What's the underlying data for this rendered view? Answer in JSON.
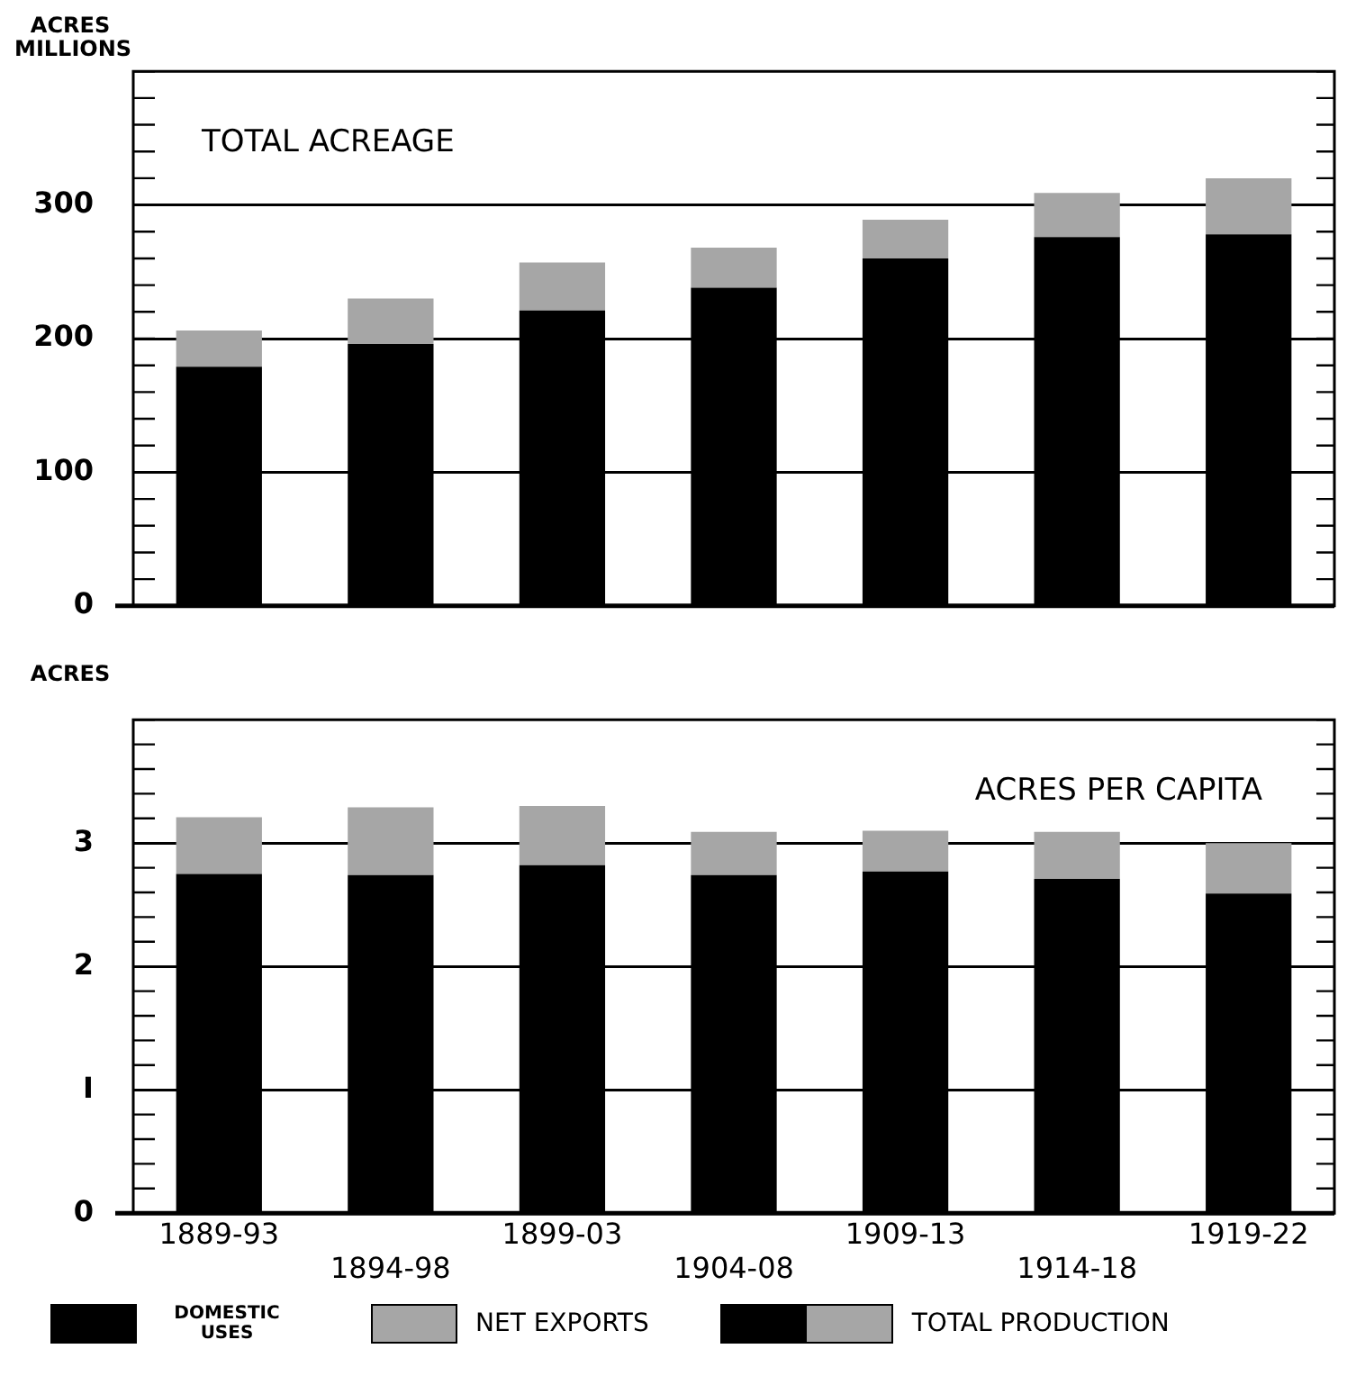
{
  "chart_data": [
    {
      "type": "bar",
      "title": "TOTAL ACREAGE",
      "ylabel": "ACRES MILLIONS",
      "categories": [
        "1889-93",
        "1894-98",
        "1899-03",
        "1904-08",
        "1909-13",
        "1914-18",
        "1919-22"
      ],
      "stacked": true,
      "series": [
        {
          "color": "#000000",
          "values": [
            179,
            196,
            221,
            238,
            260,
            276,
            278
          ]
        },
        {
          "color": "#a6a6a6",
          "values": [
            27,
            34,
            36,
            30,
            29,
            33,
            42
          ]
        }
      ],
      "ylim": [
        0,
        400
      ],
      "yticks": [
        0,
        {
          "value": 20,
          "label": null
        },
        {
          "value": 40,
          "label": null
        },
        {
          "value": 60,
          "label": null
        },
        {
          "value": 80,
          "label": null
        },
        100,
        {
          "value": 120,
          "label": null
        },
        {
          "value": 140,
          "label": null
        },
        {
          "value": 160,
          "label": null
        },
        {
          "value": 180,
          "label": null
        },
        200,
        {
          "value": 220,
          "label": null
        },
        {
          "value": 240,
          "label": null
        },
        {
          "value": 260,
          "label": null
        },
        {
          "value": 280,
          "label": null
        },
        300,
        {
          "value": 320,
          "label": null
        },
        {
          "value": 340,
          "label": null
        },
        {
          "value": 360,
          "label": null
        },
        {
          "value": 380,
          "label": null
        },
        {
          "value": 400,
          "label": null
        }
      ],
      "grid": "y",
      "tick_labels": "y"
    },
    {
      "type": "bar",
      "title": "ACRES PER CAPITA",
      "ylabel": "ACRES",
      "categories": [
        "1889-93",
        "1894-98",
        "1899-03",
        "1904-08",
        "1909-13",
        "1914-18",
        "1919-22"
      ],
      "stacked": true,
      "series": [
        {
          "name": "DOMESTIC USES",
          "color": "#000000",
          "values": [
            2.75,
            2.74,
            2.82,
            2.74,
            2.77,
            2.71,
            2.59
          ]
        },
        {
          "name": "NET EXPORTS",
          "color": "#a6a6a6",
          "values": [
            0.46,
            0.55,
            0.48,
            0.35,
            0.33,
            0.38,
            0.41
          ]
        }
      ],
      "ylim": [
        0,
        4
      ],
      "yticks": [
        0,
        {
          "value": 0.2,
          "label": null
        },
        {
          "value": 0.4,
          "label": null
        },
        {
          "value": 0.6,
          "label": null
        },
        {
          "value": 0.8,
          "label": null
        },
        {
          "value": 1,
          "label": "I"
        },
        {
          "value": 1.2,
          "label": null
        },
        {
          "value": 1.4,
          "label": null
        },
        {
          "value": 1.6,
          "label": null
        },
        {
          "value": 1.8,
          "label": null
        },
        2,
        {
          "value": 2.2,
          "label": null
        },
        {
          "value": 2.4,
          "label": null
        },
        {
          "value": 2.6,
          "label": null
        },
        {
          "value": 2.8,
          "label": null
        },
        3,
        {
          "value": 3.2,
          "label": null
        },
        {
          "value": 3.4,
          "label": null
        },
        {
          "value": 3.6,
          "label": null
        },
        {
          "value": 3.8,
          "label": null
        },
        {
          "value": 4,
          "label": null
        }
      ],
      "grid": "y",
      "legend": "bottom",
      "annotations": [
        "TOTAL PRODUCTION"
      ]
    }
  ]
}
